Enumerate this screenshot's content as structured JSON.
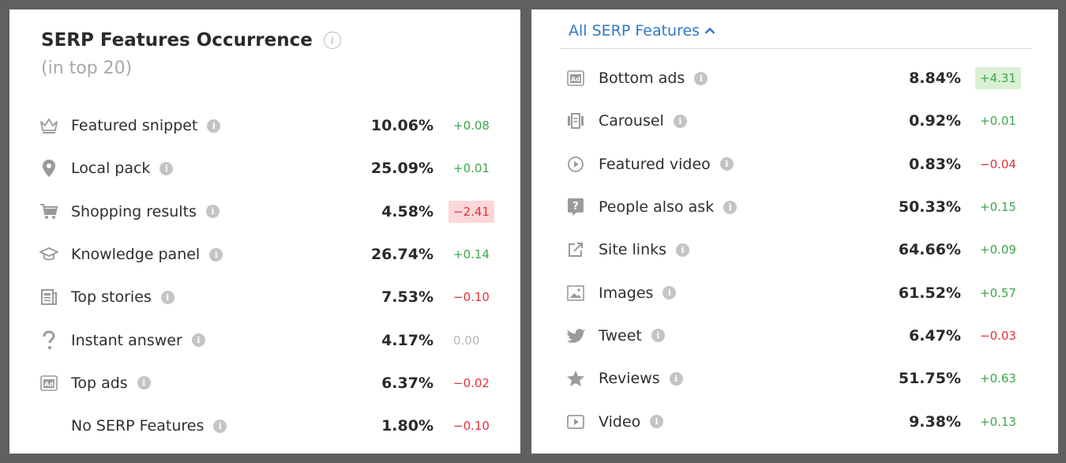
{
  "left": {
    "title": "SERP Features Occurrence",
    "subtitle": "(in top 20)",
    "rows": [
      {
        "icon": "crown-icon",
        "label": "Featured snippet",
        "value": "10.06%",
        "delta": "+0.08",
        "sign": "pos",
        "highlight": false
      },
      {
        "icon": "location-pin-icon",
        "label": "Local pack",
        "value": "25.09%",
        "delta": "+0.01",
        "sign": "pos",
        "highlight": false
      },
      {
        "icon": "shopping-cart-icon",
        "label": "Shopping results",
        "value": "4.58%",
        "delta": "−2.41",
        "sign": "neg",
        "highlight": true
      },
      {
        "icon": "graduation-cap-icon",
        "label": "Knowledge panel",
        "value": "26.74%",
        "delta": "+0.14",
        "sign": "pos",
        "highlight": false
      },
      {
        "icon": "newspaper-icon",
        "label": "Top stories",
        "value": "7.53%",
        "delta": "−0.10",
        "sign": "neg",
        "highlight": false
      },
      {
        "icon": "question-mark-icon",
        "label": "Instant answer",
        "value": "4.17%",
        "delta": "0.00",
        "sign": "zero",
        "highlight": false
      },
      {
        "icon": "ad-icon",
        "label": "Top ads",
        "value": "6.37%",
        "delta": "−0.02",
        "sign": "neg",
        "highlight": false
      },
      {
        "icon": "",
        "label": "No SERP Features",
        "value": "1.80%",
        "delta": "−0.10",
        "sign": "neg",
        "highlight": false
      }
    ]
  },
  "right": {
    "header": "All SERP Features",
    "rows": [
      {
        "icon": "ad-icon",
        "label": "Bottom ads",
        "value": "8.84%",
        "delta": "+4.31",
        "sign": "pos",
        "highlight": true
      },
      {
        "icon": "carousel-icon",
        "label": "Carousel",
        "value": "0.92%",
        "delta": "+0.01",
        "sign": "pos",
        "highlight": false
      },
      {
        "icon": "play-circle-icon",
        "label": "Featured video",
        "value": "0.83%",
        "delta": "−0.04",
        "sign": "neg",
        "highlight": false
      },
      {
        "icon": "question-bubble-icon",
        "label": "People also ask",
        "value": "50.33%",
        "delta": "+0.15",
        "sign": "pos",
        "highlight": false
      },
      {
        "icon": "external-link-icon",
        "label": "Site links",
        "value": "64.66%",
        "delta": "+0.09",
        "sign": "pos",
        "highlight": false
      },
      {
        "icon": "image-icon",
        "label": "Images",
        "value": "61.52%",
        "delta": "+0.57",
        "sign": "pos",
        "highlight": false
      },
      {
        "icon": "twitter-bird-icon",
        "label": "Tweet",
        "value": "6.47%",
        "delta": "−0.03",
        "sign": "neg",
        "highlight": false
      },
      {
        "icon": "star-icon",
        "label": "Reviews",
        "value": "51.75%",
        "delta": "+0.63",
        "sign": "pos",
        "highlight": false
      },
      {
        "icon": "video-play-icon",
        "label": "Video",
        "value": "9.38%",
        "delta": "+0.13",
        "sign": "pos",
        "highlight": false
      }
    ]
  },
  "colors": {
    "positive": "#3da64b",
    "negative": "#e5303b",
    "neutral": "#b8b8b8",
    "link": "#2f78c4",
    "icon": "#9a9a9a"
  }
}
